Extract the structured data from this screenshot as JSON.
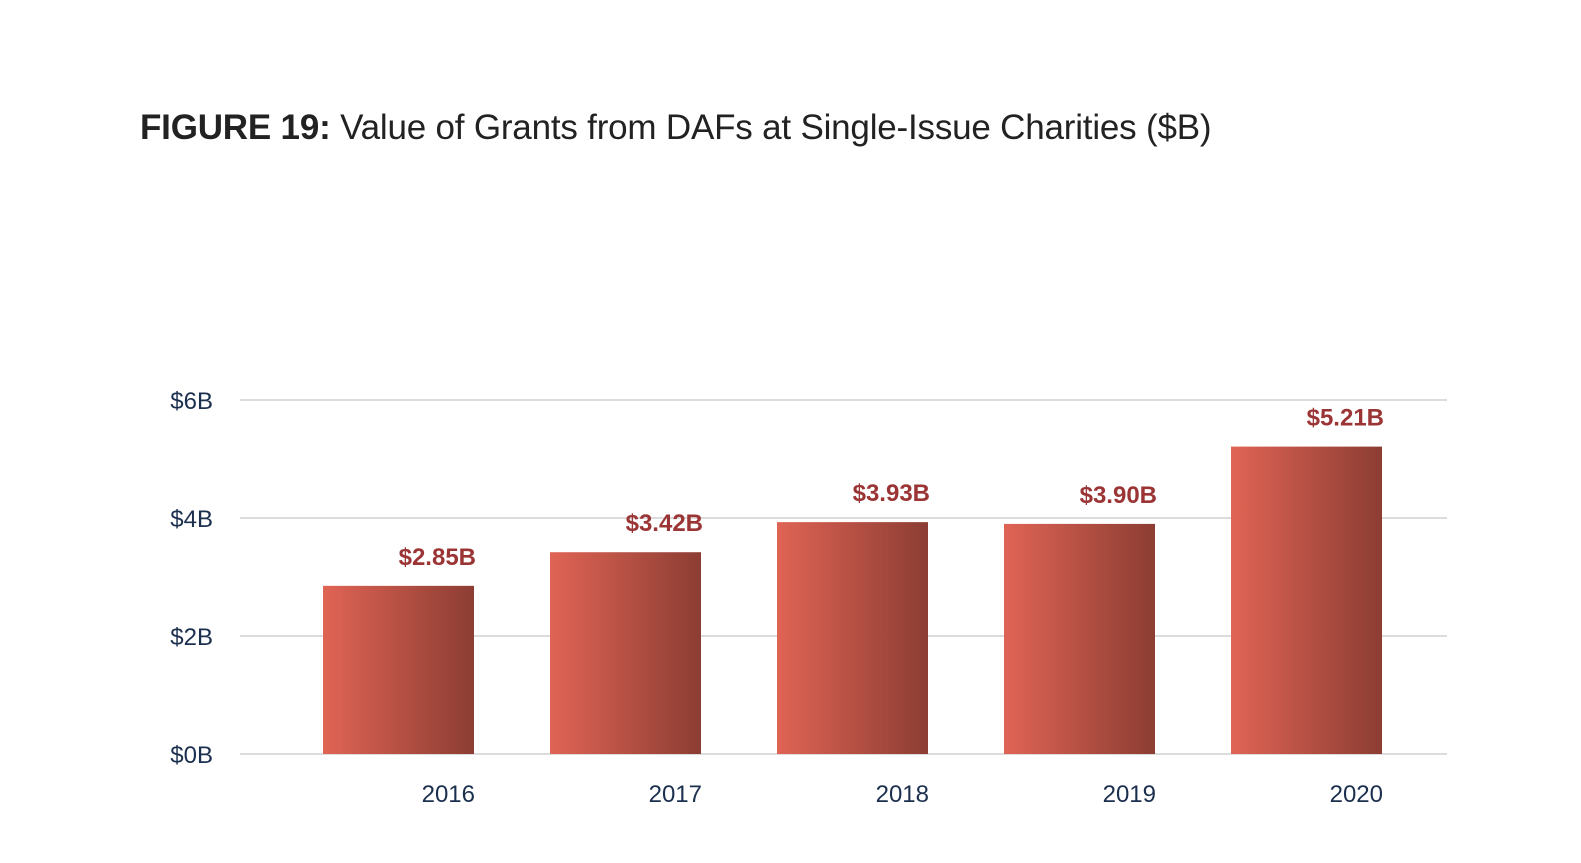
{
  "title": {
    "figure_label": "FIGURE 19:",
    "text": " Value of Grants from DAFs at Single-Issue Charities ($B)"
  },
  "colors": {
    "bar_gradient_start": "#e06455",
    "bar_gradient_end": "#8c3d33",
    "data_label": "#9b3535",
    "axis_text": "#1b2f4e",
    "gridline": "#dcdcdc",
    "title_text": "#222222"
  },
  "chart_data": {
    "type": "bar",
    "title": "FIGURE 19: Value of Grants from DAFs at Single-Issue Charities ($B)",
    "xlabel": "",
    "ylabel": "",
    "categories": [
      "2016",
      "2017",
      "2018",
      "2019",
      "2020"
    ],
    "values": [
      2.85,
      3.42,
      3.93,
      3.9,
      5.21
    ],
    "data_labels": [
      "$2.85B",
      "$3.42B",
      "$3.93B",
      "$3.90B",
      "$5.21B"
    ],
    "ylim": [
      0,
      6
    ],
    "yticks": [
      0,
      2,
      4,
      6
    ],
    "ytick_labels": [
      "$0B",
      "$2B",
      "$4B",
      "$6B"
    ],
    "grid": true,
    "legend": "none"
  }
}
